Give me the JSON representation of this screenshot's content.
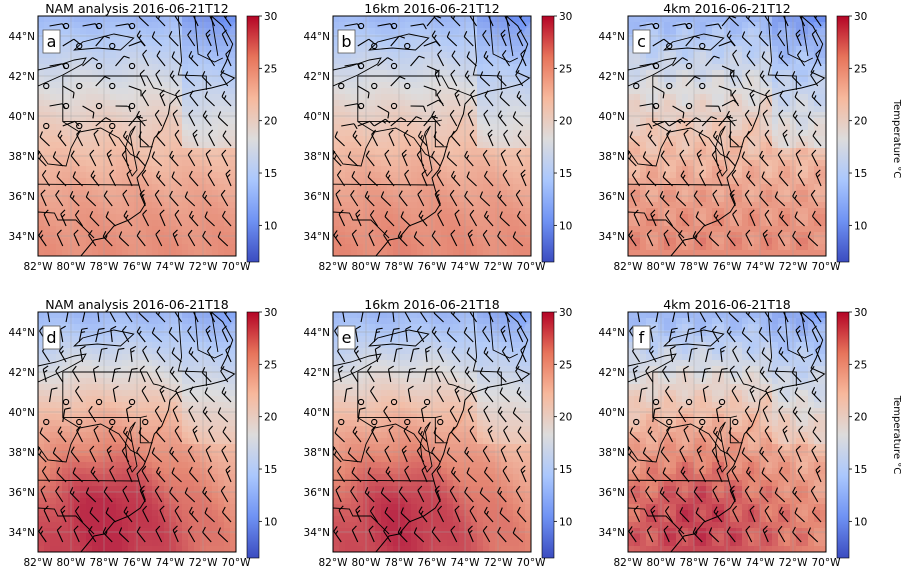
{
  "figure": {
    "colorbar_label": "Temperature °C",
    "colorbar_ticks": [
      10,
      15,
      20,
      25,
      30
    ],
    "colorbar_range": [
      6.5,
      30
    ],
    "colormap": "coolwarm",
    "colormap_stops": [
      "#3b4cc0",
      "#6f92f3",
      "#aac7fd",
      "#dddcdc",
      "#f7b89c",
      "#e7745b",
      "#b40426"
    ],
    "lon_ticks": [
      "82°W",
      "80°W",
      "78°W",
      "76°W",
      "74°W",
      "72°W",
      "70°W"
    ],
    "lat_ticks": [
      "44°N",
      "42°N",
      "40°N",
      "38°N",
      "36°N",
      "34°N"
    ],
    "map_extent": {
      "lon": [
        -82,
        -70
      ],
      "lat": [
        33,
        45
      ]
    },
    "grid_lines": true
  },
  "panels": [
    {
      "letter": "a",
      "title": "NAM analysis 2016-06-21T12",
      "show_cbar_label": false,
      "warmth": 0.0
    },
    {
      "letter": "b",
      "title": "16km 2016-06-21T12",
      "show_cbar_label": false,
      "warmth": 0.1
    },
    {
      "letter": "c",
      "title": "4km 2016-06-21T12",
      "show_cbar_label": true,
      "warmth": 0.05
    },
    {
      "letter": "d",
      "title": "NAM analysis 2016-06-21T18",
      "show_cbar_label": false,
      "warmth": 1.0
    },
    {
      "letter": "e",
      "title": "16km 2016-06-21T18",
      "show_cbar_label": false,
      "warmth": 0.9
    },
    {
      "letter": "f",
      "title": "4km 2016-06-21T18",
      "show_cbar_label": true,
      "warmth": 0.75
    }
  ]
}
